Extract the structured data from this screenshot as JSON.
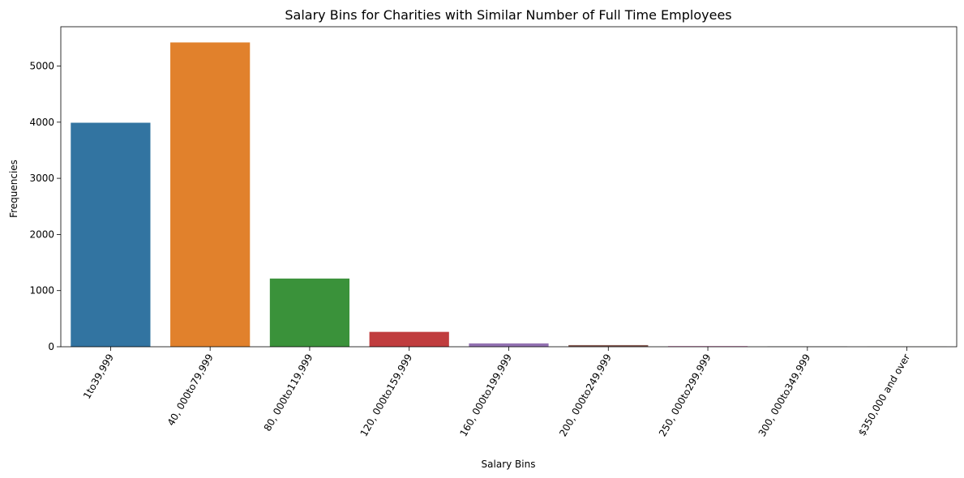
{
  "chart_data": {
    "type": "bar",
    "title": "Salary Bins for Charities with Similar Number of Full Time Employees",
    "xlabel": "Salary Bins",
    "ylabel": "Frequencies",
    "ylim": [
      0,
      5700
    ],
    "yticks": [
      0,
      1000,
      2000,
      3000,
      4000,
      5000
    ],
    "grid": false,
    "categories": [
      "1to39,999",
      "40, 000to79,999",
      "80, 000to119,999",
      "120, 000to159,999",
      "160, 000to199,999",
      "200, 000to249,999",
      "250, 000to299,999",
      "300, 000to349,999",
      "$350,000 and over"
    ],
    "values": [
      3990,
      5420,
      1215,
      265,
      60,
      30,
      12,
      5,
      2
    ],
    "colors": [
      "#3274a1",
      "#e1812c",
      "#3a923a",
      "#c03d3e",
      "#9372b2",
      "#845b53",
      "#d684bd",
      "#7f7f7f",
      "#a9aa35"
    ]
  }
}
